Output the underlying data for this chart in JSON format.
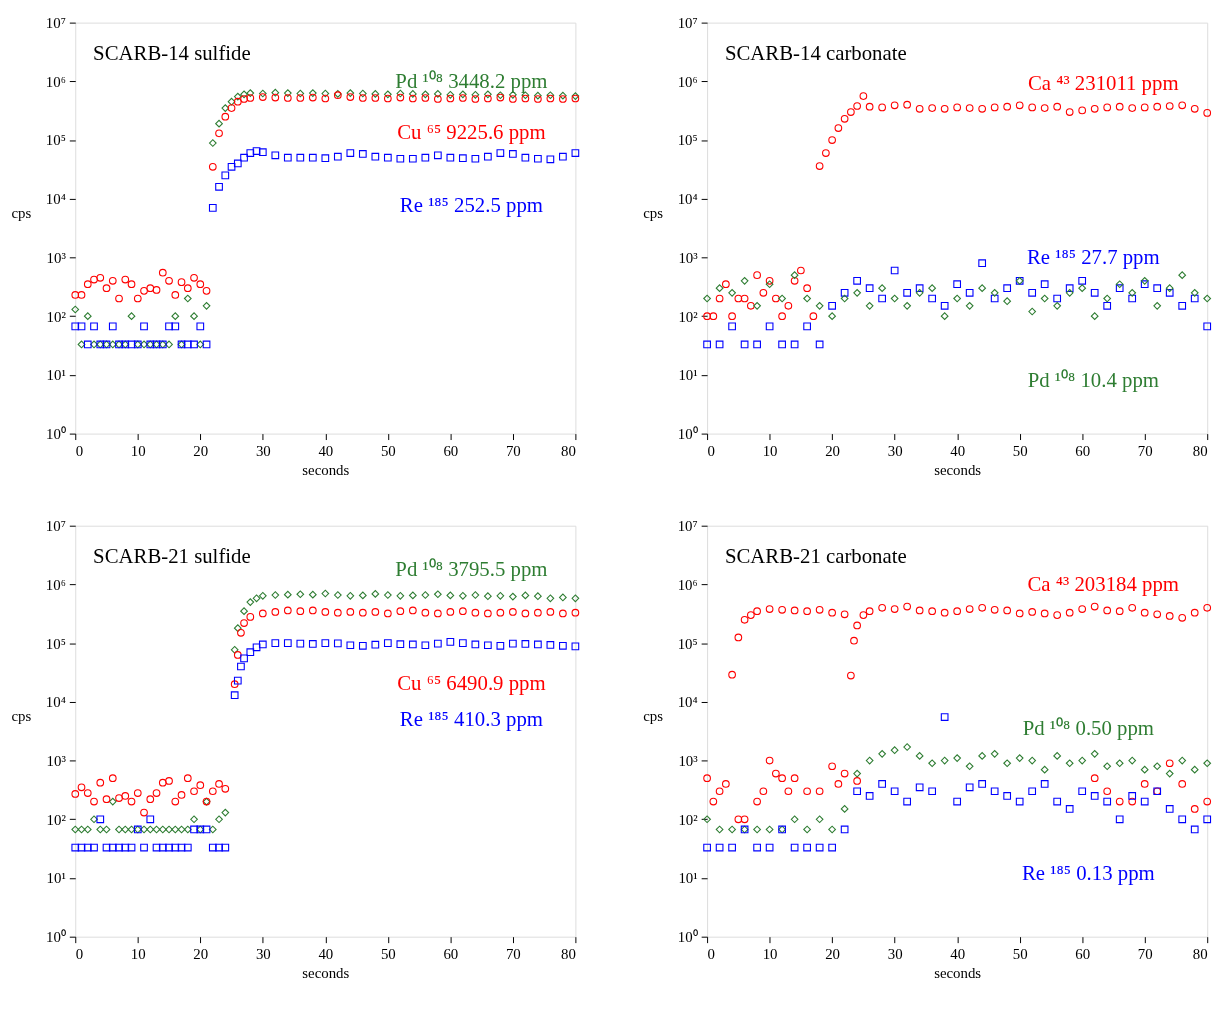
{
  "chart_data": [
    {
      "type": "scatter",
      "title": "SCARB-14 sulfide",
      "xlabel": "seconds",
      "ylabel": "cps",
      "log": true,
      "grid": false,
      "xlim": [
        0,
        80
      ],
      "xticks": [
        0,
        10,
        20,
        30,
        40,
        50,
        60,
        70,
        80
      ],
      "ylim": [
        1,
        10000000
      ],
      "yticks": [
        {
          "value": 1,
          "label": "10⁰"
        },
        {
          "value": 10,
          "label": "10¹"
        },
        {
          "value": 100,
          "label": "10²"
        },
        {
          "value": 1000,
          "label": "10³"
        },
        {
          "value": 10000,
          "label": "10⁴"
        },
        {
          "value": 100000,
          "label": "10⁵"
        },
        {
          "value": 1000000,
          "label": "10⁶"
        },
        {
          "value": 10000000,
          "label": "10⁷"
        }
      ],
      "series": [
        {
          "name": "Pd ¹⁰⁸ 3448.2 ppm",
          "color": "#2e7d32",
          "marker": "diamond",
          "x": [
            0,
            1,
            2,
            3,
            4,
            5,
            6,
            7,
            8,
            9,
            10,
            11,
            12,
            13,
            14,
            15,
            16,
            17,
            18,
            19,
            20,
            21,
            22,
            23,
            24,
            25,
            26,
            27,
            28,
            30,
            32,
            34,
            36,
            38,
            40,
            42,
            44,
            46,
            48,
            50,
            52,
            54,
            56,
            58,
            60,
            62,
            64,
            66,
            68,
            70,
            72,
            74,
            76,
            78,
            80
          ],
          "values": [
            130,
            33,
            100,
            33,
            33,
            33,
            33,
            33,
            33,
            100,
            33,
            33,
            33,
            33,
            33,
            33,
            100,
            33,
            200,
            100,
            33,
            150,
            89000,
            190000,
            350000,
            450000,
            550000,
            600000,
            630000,
            620000,
            640000,
            630000,
            620000,
            630000,
            620000,
            610000,
            630000,
            620000,
            610000,
            600000,
            620000,
            610000,
            600000,
            610000,
            590000,
            600000,
            590000,
            600000,
            580000,
            590000,
            580000,
            570000,
            580000,
            570000,
            560000
          ]
        },
        {
          "name": "Cu ⁶⁵ 9225.6 ppm",
          "color": "#ff0000",
          "marker": "circle",
          "x": [
            0,
            1,
            2,
            3,
            4,
            5,
            6,
            7,
            8,
            9,
            10,
            11,
            12,
            13,
            14,
            15,
            16,
            17,
            18,
            19,
            20,
            21,
            22,
            23,
            24,
            25,
            26,
            27,
            28,
            30,
            32,
            34,
            36,
            38,
            40,
            42,
            44,
            46,
            48,
            50,
            52,
            54,
            56,
            58,
            60,
            62,
            64,
            66,
            68,
            70,
            72,
            74,
            76,
            78,
            80
          ],
          "values": [
            230,
            230,
            350,
            420,
            450,
            300,
            400,
            200,
            420,
            350,
            200,
            270,
            300,
            280,
            550,
            400,
            230,
            380,
            300,
            450,
            350,
            270,
            35000,
            130000,
            250000,
            350000,
            450000,
            500000,
            520000,
            540000,
            530000,
            520000,
            520000,
            530000,
            510000,
            580000,
            540000,
            520000,
            520000,
            510000,
            530000,
            510000,
            520000,
            500000,
            510000,
            520000,
            500000,
            510000,
            530000,
            500000,
            510000,
            500000,
            510000,
            500000,
            510000
          ]
        },
        {
          "name": "Re ¹⁸⁵ 252.5 ppm",
          "color": "#0000ff",
          "marker": "square",
          "x": [
            0,
            1,
            2,
            3,
            4,
            5,
            6,
            7,
            8,
            9,
            10,
            11,
            12,
            13,
            14,
            15,
            16,
            17,
            18,
            19,
            20,
            21,
            22,
            23,
            24,
            25,
            26,
            27,
            28,
            29,
            30,
            32,
            34,
            36,
            38,
            40,
            42,
            44,
            46,
            48,
            50,
            52,
            54,
            56,
            58,
            60,
            62,
            64,
            66,
            68,
            70,
            72,
            74,
            76,
            78,
            80
          ],
          "values": [
            67,
            67,
            33,
            67,
            33,
            33,
            67,
            33,
            33,
            33,
            33,
            67,
            33,
            33,
            33,
            67,
            67,
            33,
            33,
            33,
            67,
            33,
            7000,
            16000,
            25000,
            35000,
            40000,
            50000,
            60000,
            65000,
            62000,
            55000,
            50000,
            50000,
            50000,
            49000,
            52000,
            60000,
            58000,
            52000,
            50000,
            48000,
            48000,
            50000,
            55000,
            50000,
            49000,
            48000,
            52000,
            60000,
            58000,
            50000,
            48000,
            47000,
            52000,
            60000
          ]
        }
      ]
    },
    {
      "type": "scatter",
      "title": "SCARB-14 carbonate",
      "xlabel": "seconds",
      "ylabel": "cps",
      "log": true,
      "grid": false,
      "xlim": [
        0,
        80
      ],
      "xticks": [
        0,
        10,
        20,
        30,
        40,
        50,
        60,
        70,
        80
      ],
      "ylim": [
        1,
        10000000
      ],
      "yticks": [
        {
          "value": 1,
          "label": "10⁰"
        },
        {
          "value": 10,
          "label": "10¹"
        },
        {
          "value": 100,
          "label": "10²"
        },
        {
          "value": 1000,
          "label": "10³"
        },
        {
          "value": 10000,
          "label": "10⁴"
        },
        {
          "value": 100000,
          "label": "10⁵"
        },
        {
          "value": 1000000,
          "label": "10⁶"
        },
        {
          "value": 10000000,
          "label": "10⁷"
        }
      ],
      "series": [
        {
          "name": "Ca ⁴³ 231011 ppm",
          "color": "#ff0000",
          "marker": "circle",
          "x": [
            0,
            1,
            2,
            3,
            4,
            5,
            6,
            7,
            8,
            9,
            10,
            11,
            12,
            13,
            14,
            15,
            16,
            17,
            18,
            19,
            20,
            21,
            22,
            23,
            24,
            25,
            26,
            28,
            30,
            32,
            34,
            36,
            38,
            40,
            42,
            44,
            46,
            48,
            50,
            52,
            54,
            56,
            58,
            60,
            62,
            64,
            66,
            68,
            70,
            72,
            74,
            76,
            78,
            80
          ],
          "values": [
            100,
            100,
            200,
            350,
            100,
            200,
            200,
            150,
            500,
            250,
            400,
            200,
            100,
            150,
            400,
            600,
            300,
            100,
            36000,
            60000,
            100000,
            160000,
            230000,
            300000,
            380000,
            560000,
            370000,
            360000,
            390000,
            400000,
            340000,
            350000,
            340000,
            360000,
            350000,
            340000,
            360000,
            370000,
            390000,
            360000,
            350000,
            370000,
            300000,
            320000,
            340000,
            360000,
            370000,
            350000,
            360000,
            370000,
            380000,
            390000,
            340000,
            290000
          ]
        },
        {
          "name": "Re ¹⁸⁵ 27.7 ppm",
          "color": "#0000ff",
          "marker": "square",
          "x": [
            0,
            2,
            4,
            6,
            8,
            10,
            12,
            14,
            16,
            18,
            20,
            22,
            24,
            26,
            28,
            30,
            32,
            34,
            36,
            38,
            40,
            42,
            44,
            46,
            48,
            50,
            52,
            54,
            56,
            58,
            60,
            62,
            64,
            66,
            68,
            70,
            72,
            74,
            76,
            78,
            80
          ],
          "values": [
            33,
            33,
            67,
            33,
            33,
            67,
            33,
            33,
            67,
            33,
            150,
            250,
            400,
            300,
            200,
            600,
            250,
            300,
            200,
            150,
            350,
            250,
            800,
            200,
            300,
            400,
            250,
            350,
            200,
            300,
            400,
            250,
            150,
            300,
            200,
            350,
            300,
            250,
            150,
            200,
            67
          ]
        },
        {
          "name": "Pd ¹⁰⁸ 10.4 ppm",
          "color": "#2e7d32",
          "marker": "diamond",
          "x": [
            0,
            2,
            4,
            6,
            8,
            10,
            12,
            14,
            16,
            18,
            20,
            22,
            24,
            26,
            28,
            30,
            32,
            34,
            36,
            38,
            40,
            42,
            44,
            46,
            48,
            50,
            52,
            54,
            56,
            58,
            60,
            62,
            64,
            66,
            68,
            70,
            72,
            74,
            76,
            78,
            80
          ],
          "values": [
            200,
            300,
            250,
            400,
            150,
            350,
            200,
            500,
            200,
            150,
            100,
            200,
            250,
            150,
            300,
            200,
            150,
            250,
            300,
            100,
            200,
            150,
            300,
            250,
            180,
            400,
            120,
            200,
            150,
            250,
            300,
            100,
            200,
            350,
            250,
            400,
            150,
            300,
            500,
            250,
            200
          ]
        }
      ]
    },
    {
      "type": "scatter",
      "title": "SCARB-21 sulfide",
      "xlabel": "seconds",
      "ylabel": "cps",
      "log": true,
      "grid": false,
      "xlim": [
        0,
        80
      ],
      "xticks": [
        0,
        10,
        20,
        30,
        40,
        50,
        60,
        70,
        80
      ],
      "ylim": [
        1,
        10000000
      ],
      "yticks": [
        {
          "value": 1,
          "label": "10⁰"
        },
        {
          "value": 10,
          "label": "10¹"
        },
        {
          "value": 100,
          "label": "10²"
        },
        {
          "value": 1000,
          "label": "10³"
        },
        {
          "value": 10000,
          "label": "10⁴"
        },
        {
          "value": 100000,
          "label": "10⁵"
        },
        {
          "value": 1000000,
          "label": "10⁶"
        },
        {
          "value": 10000000,
          "label": "10⁷"
        }
      ],
      "series": [
        {
          "name": "Pd ¹⁰⁸ 3795.5 ppm",
          "color": "#2e7d32",
          "marker": "diamond",
          "x": [
            0,
            1,
            2,
            3,
            4,
            5,
            6,
            7,
            8,
            9,
            10,
            11,
            12,
            13,
            14,
            15,
            16,
            17,
            18,
            19,
            20,
            21,
            22,
            23,
            24,
            25.5,
            26,
            27,
            28,
            29,
            30,
            32,
            34,
            36,
            38,
            40,
            42,
            44,
            46,
            48,
            50,
            52,
            54,
            56,
            58,
            60,
            62,
            64,
            66,
            68,
            70,
            72,
            74,
            76,
            78,
            80
          ],
          "values": [
            67,
            67,
            67,
            100,
            67,
            67,
            200,
            67,
            67,
            67,
            67,
            67,
            67,
            67,
            67,
            67,
            67,
            67,
            67,
            100,
            67,
            200,
            67,
            100,
            130,
            77000,
            180000,
            350000,
            500000,
            580000,
            640000,
            660000,
            670000,
            680000,
            670000,
            700000,
            660000,
            640000,
            650000,
            690000,
            660000,
            640000,
            650000,
            660000,
            680000,
            650000,
            640000,
            660000,
            630000,
            640000,
            620000,
            650000,
            630000,
            580000,
            600000,
            580000
          ]
        },
        {
          "name": "Cu ⁶⁵ 6490.9 ppm",
          "color": "#ff0000",
          "marker": "circle",
          "x": [
            0,
            1,
            2,
            3,
            4,
            5,
            6,
            7,
            8,
            9,
            10,
            11,
            12,
            13,
            14,
            15,
            16,
            17,
            18,
            19,
            20,
            21,
            22,
            23,
            24,
            25.5,
            26,
            26.5,
            27,
            28,
            30,
            32,
            34,
            36,
            38,
            40,
            42,
            44,
            46,
            48,
            50,
            52,
            54,
            56,
            58,
            60,
            62,
            64,
            66,
            68,
            70,
            72,
            74,
            76,
            78,
            80
          ],
          "values": [
            270,
            350,
            280,
            200,
            420,
            220,
            500,
            230,
            250,
            200,
            280,
            130,
            220,
            280,
            420,
            450,
            200,
            260,
            500,
            300,
            380,
            200,
            300,
            400,
            330,
            20000,
            63000,
            150000,
            220000,
            280000,
            320000,
            340000,
            360000,
            350000,
            360000,
            340000,
            330000,
            340000,
            330000,
            340000,
            320000,
            350000,
            360000,
            330000,
            320000,
            340000,
            350000,
            330000,
            320000,
            330000,
            340000,
            320000,
            330000,
            340000,
            320000,
            330000
          ]
        },
        {
          "name": "Re ¹⁸⁵ 410.3 ppm",
          "color": "#0000ff",
          "marker": "square",
          "x": [
            0,
            1,
            2,
            3,
            4,
            5,
            6,
            7,
            8,
            9,
            10,
            11,
            12,
            13,
            14,
            15,
            16,
            17,
            18,
            19,
            20,
            21,
            22,
            23,
            24,
            25.5,
            26,
            26.5,
            27,
            28,
            29,
            30,
            32,
            34,
            36,
            38,
            40,
            42,
            44,
            46,
            48,
            50,
            52,
            54,
            56,
            58,
            60,
            62,
            64,
            66,
            68,
            70,
            72,
            74,
            76,
            78,
            80
          ],
          "values": [
            33,
            33,
            33,
            33,
            100,
            33,
            33,
            33,
            33,
            33,
            67,
            33,
            100,
            33,
            33,
            33,
            33,
            33,
            33,
            67,
            67,
            67,
            33,
            33,
            33,
            13000,
            23000,
            40000,
            55000,
            70000,
            85000,
            95000,
            100000,
            100000,
            98000,
            97000,
            100000,
            99000,
            92000,
            90000,
            94000,
            100000,
            96000,
            95000,
            92000,
            98000,
            105000,
            100000,
            95000,
            92000,
            90000,
            98000,
            97000,
            95000,
            93000,
            90000,
            88000
          ]
        }
      ]
    },
    {
      "type": "scatter",
      "title": "SCARB-21 carbonate",
      "xlabel": "seconds",
      "ylabel": "cps",
      "log": true,
      "grid": false,
      "xlim": [
        0,
        80
      ],
      "xticks": [
        0,
        10,
        20,
        30,
        40,
        50,
        60,
        70,
        80
      ],
      "ylim": [
        1,
        10000000
      ],
      "yticks": [
        {
          "value": 1,
          "label": "10⁰"
        },
        {
          "value": 10,
          "label": "10¹"
        },
        {
          "value": 100,
          "label": "10²"
        },
        {
          "value": 1000,
          "label": "10³"
        },
        {
          "value": 10000,
          "label": "10⁴"
        },
        {
          "value": 100000,
          "label": "10⁵"
        },
        {
          "value": 1000000,
          "label": "10⁶"
        },
        {
          "value": 10000000,
          "label": "10⁷"
        }
      ],
      "series": [
        {
          "name": "Ca ⁴³ 203184 ppm",
          "color": "#ff0000",
          "marker": "circle",
          "x": [
            4,
            5,
            6,
            7,
            8,
            10,
            12,
            14,
            16,
            18,
            20,
            22,
            23,
            23.5,
            24,
            25,
            26,
            28,
            30,
            32,
            34,
            36,
            38,
            40,
            42,
            44,
            46,
            48,
            50,
            52,
            54,
            56,
            58,
            60,
            62,
            64,
            66,
            68,
            70,
            72,
            74,
            76,
            78,
            80
          ],
          "values": [
            29000,
            125000,
            250000,
            300000,
            350000,
            380000,
            370000,
            360000,
            350000,
            370000,
            330000,
            310000,
            28000,
            110000,
            200000,
            300000,
            350000,
            400000,
            380000,
            420000,
            360000,
            350000,
            330000,
            350000,
            380000,
            400000,
            370000,
            360000,
            320000,
            340000,
            320000,
            300000,
            330000,
            380000,
            420000,
            360000,
            350000,
            400000,
            330000,
            310000,
            290000,
            270000,
            330000,
            400000
          ]
        },
        {
          "color": "#ff0000",
          "marker": "circle",
          "x": [
            0,
            1,
            2,
            3,
            5,
            6,
            8,
            9,
            10,
            11,
            12,
            13,
            14,
            16,
            18,
            20,
            21,
            22,
            24,
            62,
            64,
            66,
            68,
            70,
            72,
            74,
            76,
            78,
            80
          ],
          "values": [
            500,
            200,
            300,
            400,
            100,
            100,
            200,
            300,
            1000,
            600,
            500,
            300,
            500,
            300,
            300,
            800,
            400,
            600,
            450,
            500,
            300,
            200,
            200,
            400,
            300,
            900,
            400,
            150,
            200
          ]
        },
        {
          "name": "Pd ¹⁰⁸ 0.50 ppm",
          "color": "#2e7d32",
          "marker": "diamond",
          "x": [
            0,
            2,
            4,
            6,
            8,
            10,
            12,
            14,
            16,
            18,
            20,
            22,
            24,
            26,
            28,
            30,
            32,
            34,
            36,
            38,
            40,
            42,
            44,
            46,
            48,
            50,
            52,
            54,
            56,
            58,
            60,
            62,
            64,
            66,
            68,
            70,
            72,
            74,
            76,
            78,
            80
          ],
          "values": [
            100,
            67,
            67,
            67,
            67,
            67,
            67,
            100,
            67,
            100,
            67,
            150,
            600,
            1000,
            1300,
            1500,
            1700,
            1200,
            900,
            1000,
            1100,
            800,
            1200,
            1300,
            900,
            1100,
            1000,
            700,
            1200,
            900,
            1000,
            1300,
            800,
            900,
            1000,
            700,
            800,
            600,
            1000,
            700,
            900
          ]
        },
        {
          "name": "Re ¹⁸⁵ 0.13 ppm",
          "color": "#0000ff",
          "marker": "square",
          "x": [
            0,
            2,
            4,
            6,
            8,
            10,
            12,
            14,
            16,
            18,
            20,
            22,
            24,
            26,
            28,
            30,
            32,
            34,
            36,
            38,
            40,
            42,
            44,
            46,
            48,
            50,
            52,
            54,
            56,
            58,
            60,
            62,
            64,
            66,
            68,
            70,
            72,
            74,
            76,
            78,
            80
          ],
          "values": [
            33,
            33,
            33,
            67,
            33,
            33,
            67,
            33,
            33,
            33,
            33,
            67,
            300,
            250,
            400,
            300,
            200,
            350,
            300,
            5500,
            200,
            350,
            400,
            300,
            250,
            200,
            300,
            400,
            200,
            150,
            300,
            250,
            200,
            100,
            250,
            200,
            300,
            150,
            100,
            67,
            100
          ]
        }
      ]
    }
  ]
}
